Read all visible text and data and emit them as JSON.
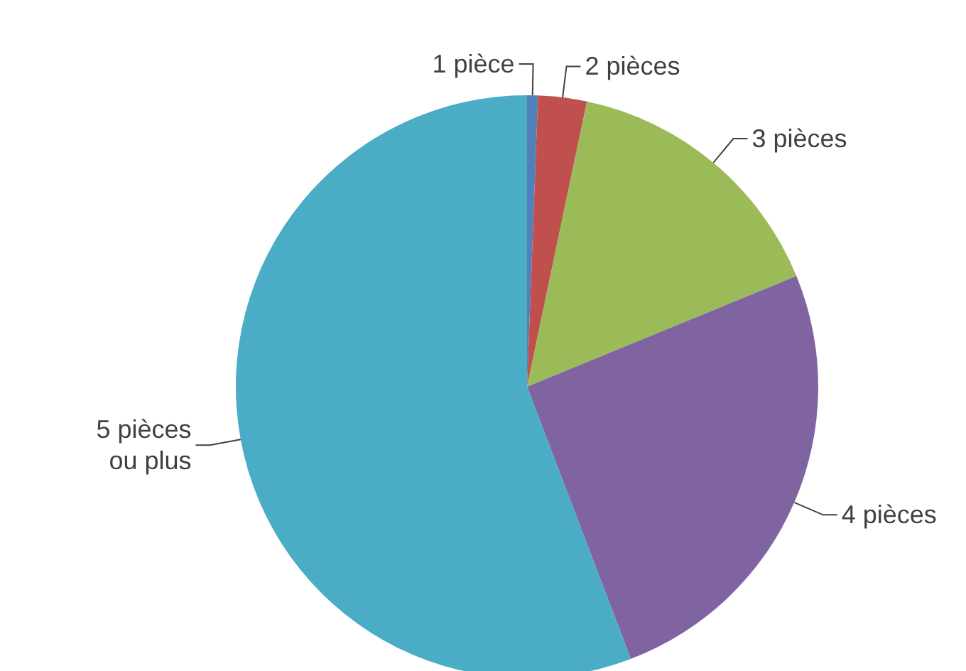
{
  "chart_data": {
    "type": "pie",
    "categories": [
      "1 pièce",
      "2 pièces",
      "3 pièces",
      "4 pièces",
      "5 pièces ou plus"
    ],
    "values": [
      0.6,
      2.7,
      15.5,
      25.4,
      55.8
    ],
    "colors": [
      "#4f81bd",
      "#c0504d",
      "#9bbb59",
      "#8064a2",
      "#4bacc6"
    ]
  }
}
